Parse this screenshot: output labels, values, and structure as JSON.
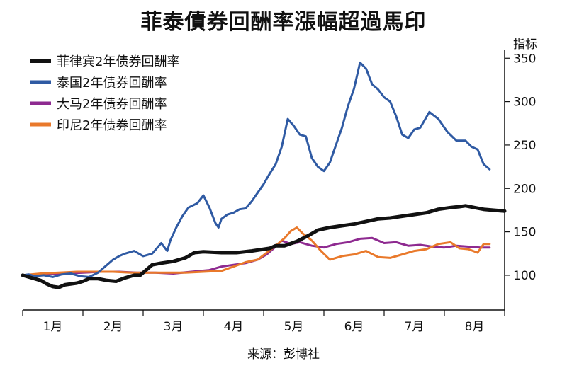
{
  "chart_data": {
    "type": "line",
    "title": "菲泰債券回酬率漲幅超過馬印",
    "ylabel": "指标",
    "source": "来源：彭博社",
    "ylim": [
      60,
      360
    ],
    "yticks": [
      100,
      150,
      200,
      250,
      300,
      350
    ],
    "xlim": [
      0,
      8
    ],
    "categories": [
      "1月",
      "2月",
      "3月",
      "4月",
      "5月",
      "6月",
      "7月",
      "8月"
    ],
    "legend_position": "top-left",
    "series": [
      {
        "name": "菲律宾2年债券回酬率",
        "color": "#111111",
        "x": [
          0,
          0.1,
          0.2,
          0.3,
          0.4,
          0.5,
          0.6,
          0.7,
          0.9,
          1.0,
          1.1,
          1.25,
          1.4,
          1.55,
          1.7,
          1.85,
          1.95,
          2.05,
          2.15,
          2.3,
          2.5,
          2.7,
          2.85,
          3.0,
          3.3,
          3.55,
          3.8,
          4.0,
          4.1,
          4.2,
          4.35,
          4.55,
          4.75,
          4.9,
          5.1,
          5.3,
          5.5,
          5.7,
          5.9,
          6.1,
          6.3,
          6.5,
          6.7,
          6.9,
          7.1,
          7.25,
          7.35,
          7.5,
          7.65,
          7.8,
          8.0
        ],
        "values": [
          100,
          98,
          96,
          94,
          90,
          87,
          86,
          89,
          91,
          93,
          96,
          96,
          94,
          93,
          97,
          100,
          100,
          106,
          112,
          114,
          116,
          120,
          126,
          127,
          126,
          126,
          128,
          130,
          131,
          134,
          134,
          139,
          146,
          152,
          155,
          157,
          159,
          162,
          165,
          166,
          168,
          170,
          172,
          176,
          178,
          179,
          180,
          178,
          176,
          175,
          174
        ]
      },
      {
        "name": "泰国2年债券回酬率",
        "color": "#2f5aa3",
        "x": [
          0,
          0.1,
          0.2,
          0.35,
          0.5,
          0.65,
          0.8,
          0.95,
          1.1,
          1.25,
          1.4,
          1.5,
          1.6,
          1.7,
          1.85,
          2.0,
          2.15,
          2.3,
          2.4,
          2.45,
          2.55,
          2.65,
          2.75,
          2.9,
          3.0,
          3.1,
          3.2,
          3.25,
          3.3,
          3.4,
          3.5,
          3.6,
          3.7,
          3.8,
          3.9,
          4.0,
          4.1,
          4.2,
          4.3,
          4.4,
          4.5,
          4.6,
          4.7,
          4.8,
          4.9,
          5.0,
          5.1,
          5.2,
          5.3,
          5.4,
          5.5,
          5.6,
          5.7,
          5.8,
          5.9,
          6.0,
          6.1,
          6.2,
          6.3,
          6.4,
          6.5,
          6.6,
          6.75,
          6.9,
          7.05,
          7.2,
          7.35,
          7.45,
          7.55,
          7.65,
          7.75
        ],
        "values": [
          100,
          101,
          99,
          100,
          98,
          101,
          102,
          99,
          98,
          103,
          112,
          118,
          122,
          125,
          128,
          122,
          125,
          137,
          128,
          140,
          155,
          168,
          178,
          183,
          192,
          178,
          160,
          155,
          165,
          170,
          172,
          176,
          177,
          185,
          195,
          205,
          217,
          228,
          248,
          280,
          272,
          262,
          260,
          235,
          225,
          220,
          230,
          250,
          270,
          295,
          315,
          345,
          338,
          320,
          314,
          305,
          300,
          283,
          262,
          258,
          268,
          270,
          288,
          280,
          265,
          255,
          255,
          248,
          245,
          228,
          222
        ]
      },
      {
        "name": "大马2年债券回酬率",
        "color": "#8e2a90",
        "x": [
          0,
          0.3,
          0.7,
          1.0,
          1.3,
          1.6,
          1.9,
          2.2,
          2.5,
          2.8,
          3.1,
          3.3,
          3.5,
          3.7,
          3.9,
          4.05,
          4.2,
          4.3,
          4.45,
          4.6,
          4.8,
          5.0,
          5.2,
          5.4,
          5.6,
          5.8,
          6.0,
          6.2,
          6.4,
          6.6,
          6.8,
          7.0,
          7.2,
          7.4,
          7.6,
          7.75
        ],
        "values": [
          100,
          101,
          102,
          103,
          104,
          104,
          103,
          103,
          102,
          104,
          106,
          110,
          112,
          114,
          118,
          124,
          133,
          140,
          136,
          138,
          134,
          132,
          136,
          138,
          142,
          143,
          137,
          138,
          134,
          135,
          133,
          132,
          134,
          133,
          132,
          132
        ]
      },
      {
        "name": "印尼2年债券回酬率",
        "color": "#e9792b",
        "x": [
          0,
          0.3,
          0.6,
          0.9,
          1.2,
          1.5,
          1.8,
          2.1,
          2.4,
          2.7,
          3.0,
          3.3,
          3.5,
          3.7,
          3.9,
          4.05,
          4.2,
          4.35,
          4.45,
          4.55,
          4.65,
          4.8,
          4.95,
          5.1,
          5.3,
          5.5,
          5.7,
          5.9,
          6.1,
          6.3,
          6.5,
          6.7,
          6.9,
          7.1,
          7.25,
          7.4,
          7.55,
          7.65,
          7.75
        ],
        "values": [
          100,
          102,
          103,
          104,
          104,
          104,
          103,
          103,
          103,
          103,
          104,
          105,
          110,
          115,
          118,
          126,
          134,
          143,
          151,
          155,
          148,
          140,
          128,
          118,
          122,
          124,
          128,
          121,
          120,
          124,
          128,
          130,
          136,
          138,
          131,
          130,
          126,
          136,
          136
        ]
      }
    ]
  }
}
